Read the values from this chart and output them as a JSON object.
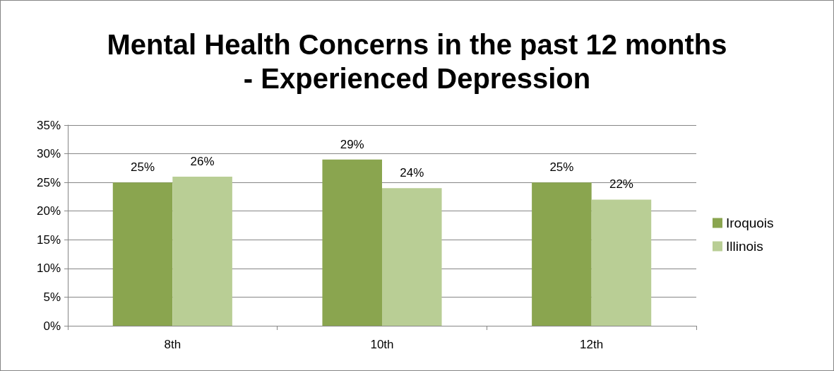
{
  "chart_data": {
    "type": "bar",
    "title": "Mental Health Concerns in the past 12 months\n- Experienced Depression",
    "categories": [
      "8th",
      "10th",
      "12th"
    ],
    "series": [
      {
        "name": "Iroquois",
        "color": "#8aa54f",
        "values": [
          25,
          29,
          25
        ],
        "value_labels": [
          "25%",
          "29%",
          "25%"
        ]
      },
      {
        "name": "Illinois",
        "color": "#b9ce95",
        "values": [
          26,
          24,
          22
        ],
        "value_labels": [
          "26%",
          "24%",
          "22%"
        ]
      }
    ],
    "ylim": [
      0,
      35
    ],
    "yticks": [
      {
        "value": 0,
        "label": "0%"
      },
      {
        "value": 5,
        "label": "5%"
      },
      {
        "value": 10,
        "label": "10%"
      },
      {
        "value": 15,
        "label": "15%"
      },
      {
        "value": 20,
        "label": "20%"
      },
      {
        "value": 25,
        "label": "25%"
      },
      {
        "value": 30,
        "label": "30%"
      },
      {
        "value": 35,
        "label": "35%"
      }
    ],
    "grid": "y",
    "legend": "right"
  }
}
